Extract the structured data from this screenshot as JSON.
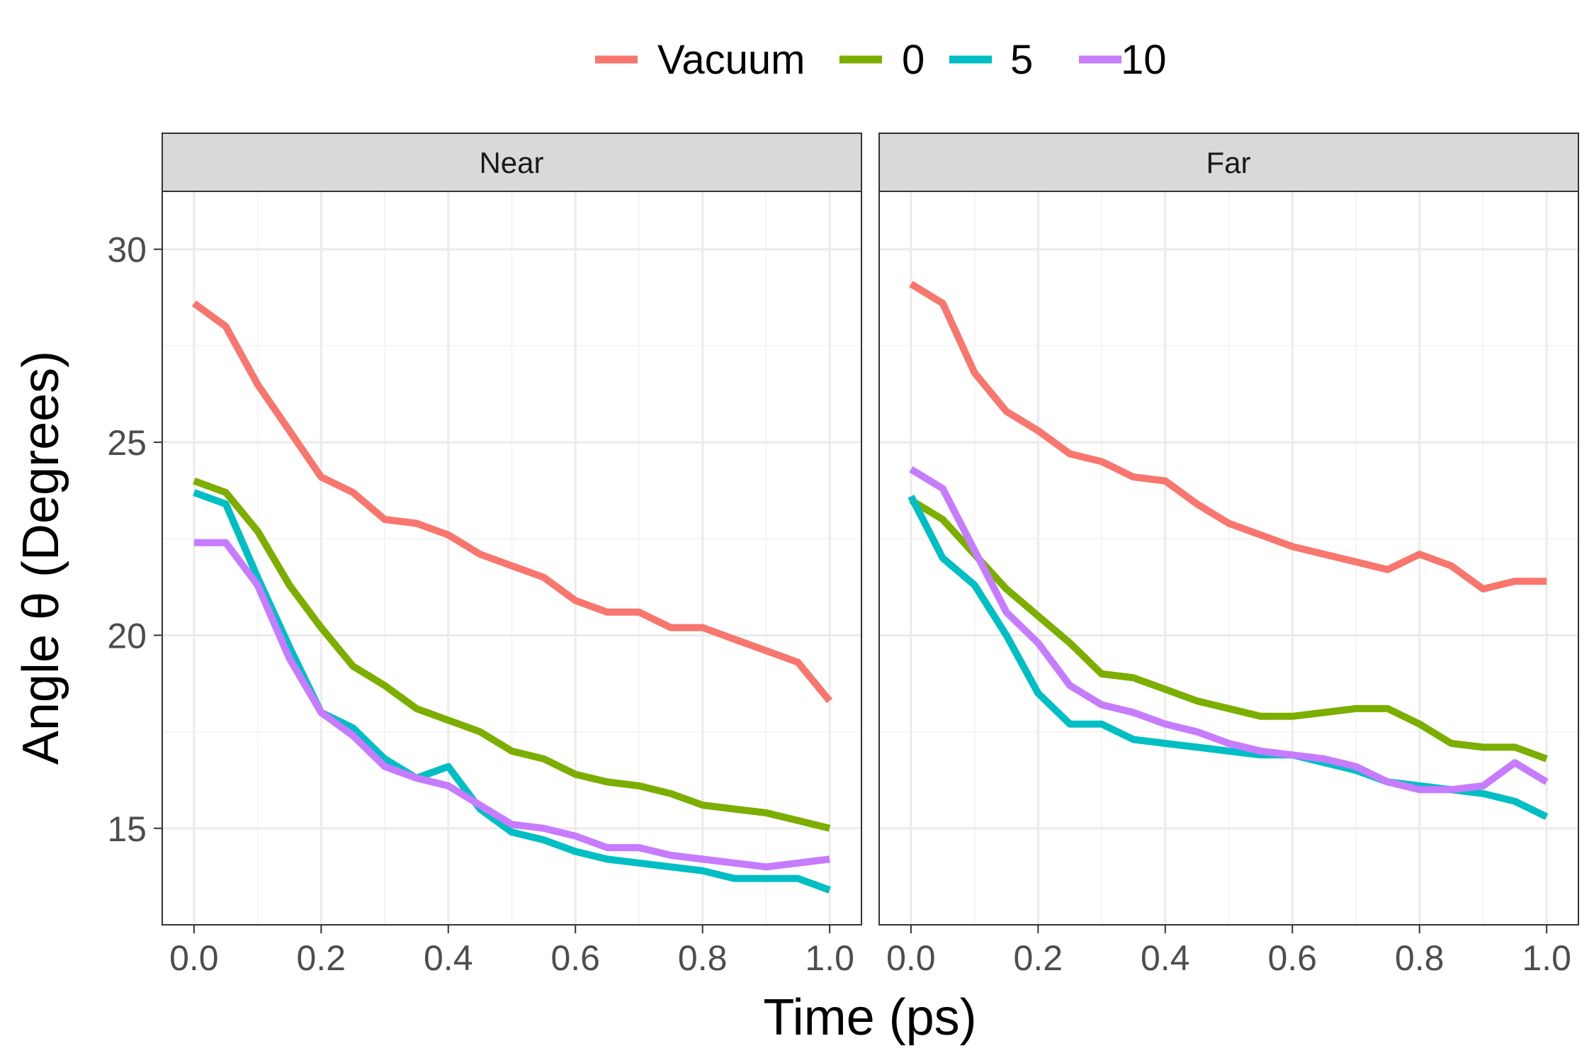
{
  "chart_data": {
    "type": "line",
    "xlabel": "Time (ps)",
    "ylabel": "Angle θ (Degrees)",
    "xlim": [
      -0.05,
      1.05
    ],
    "ylim": [
      12.5,
      31.5
    ],
    "x_ticks": [
      0.0,
      0.2,
      0.4,
      0.6,
      0.8,
      1.0
    ],
    "x_tick_labels": [
      "0.0",
      "0.2",
      "0.4",
      "0.6",
      "0.8",
      "1.0"
    ],
    "y_ticks": [
      15,
      20,
      25,
      30
    ],
    "y_tick_labels": [
      "15",
      "20",
      "25",
      "30"
    ],
    "grid": true,
    "legend_position": "top",
    "legend": [
      {
        "label": "Vacuum",
        "color": "#F8766D"
      },
      {
        "label": "0",
        "color": "#7CAE00"
      },
      {
        "label": "5",
        "color": "#00BFC4"
      },
      {
        "label": "10",
        "color": "#C77CFF"
      }
    ],
    "x": [
      0.0,
      0.05,
      0.1,
      0.15,
      0.2,
      0.25,
      0.3,
      0.35,
      0.4,
      0.45,
      0.5,
      0.55,
      0.6,
      0.65,
      0.7,
      0.75,
      0.8,
      0.85,
      0.9,
      0.95,
      1.0
    ],
    "panels": [
      {
        "title": "Near",
        "series": [
          {
            "name": "Vacuum",
            "color": "#F8766D",
            "values": [
              28.6,
              28.0,
              26.5,
              25.3,
              24.1,
              23.7,
              23.0,
              22.9,
              22.6,
              22.1,
              21.8,
              21.5,
              20.9,
              20.6,
              20.6,
              20.2,
              20.2,
              19.9,
              19.6,
              19.3,
              18.3
            ]
          },
          {
            "name": "0",
            "color": "#7CAE00",
            "values": [
              24.0,
              23.7,
              22.7,
              21.3,
              20.2,
              19.2,
              18.7,
              18.1,
              17.8,
              17.5,
              17.0,
              16.8,
              16.4,
              16.2,
              16.1,
              15.9,
              15.6,
              15.5,
              15.4,
              15.2,
              15.0
            ]
          },
          {
            "name": "5",
            "color": "#00BFC4",
            "values": [
              23.7,
              23.4,
              21.5,
              19.7,
              18.0,
              17.6,
              16.8,
              16.3,
              16.6,
              15.5,
              14.9,
              14.7,
              14.4,
              14.2,
              14.1,
              14.0,
              13.9,
              13.7,
              13.7,
              13.7,
              13.4
            ]
          },
          {
            "name": "10",
            "color": "#C77CFF",
            "values": [
              22.4,
              22.4,
              21.3,
              19.4,
              18.0,
              17.4,
              16.6,
              16.3,
              16.1,
              15.6,
              15.1,
              15.0,
              14.8,
              14.5,
              14.5,
              14.3,
              14.2,
              14.1,
              14.0,
              14.1,
              14.2
            ]
          }
        ]
      },
      {
        "title": "Far",
        "series": [
          {
            "name": "Vacuum",
            "color": "#F8766D",
            "values": [
              29.1,
              28.6,
              26.8,
              25.8,
              25.3,
              24.7,
              24.5,
              24.1,
              24.0,
              23.4,
              22.9,
              22.6,
              22.3,
              22.1,
              21.9,
              21.7,
              22.1,
              21.8,
              21.2,
              21.4,
              21.4
            ]
          },
          {
            "name": "0",
            "color": "#7CAE00",
            "values": [
              23.5,
              23.0,
              22.1,
              21.2,
              20.5,
              19.8,
              19.0,
              18.9,
              18.6,
              18.3,
              18.1,
              17.9,
              17.9,
              18.0,
              18.1,
              18.1,
              17.7,
              17.2,
              17.1,
              17.1,
              16.8
            ]
          },
          {
            "name": "5",
            "color": "#00BFC4",
            "values": [
              23.6,
              22.0,
              21.3,
              20.0,
              18.5,
              17.7,
              17.7,
              17.3,
              17.2,
              17.1,
              17.0,
              16.9,
              16.9,
              16.7,
              16.5,
              16.2,
              16.1,
              16.0,
              15.9,
              15.7,
              15.3
            ]
          },
          {
            "name": "10",
            "color": "#C77CFF",
            "values": [
              24.3,
              23.8,
              22.2,
              20.6,
              19.8,
              18.7,
              18.2,
              18.0,
              17.7,
              17.5,
              17.2,
              17.0,
              16.9,
              16.8,
              16.6,
              16.2,
              16.0,
              16.0,
              16.1,
              16.7,
              16.2
            ]
          }
        ]
      }
    ]
  }
}
